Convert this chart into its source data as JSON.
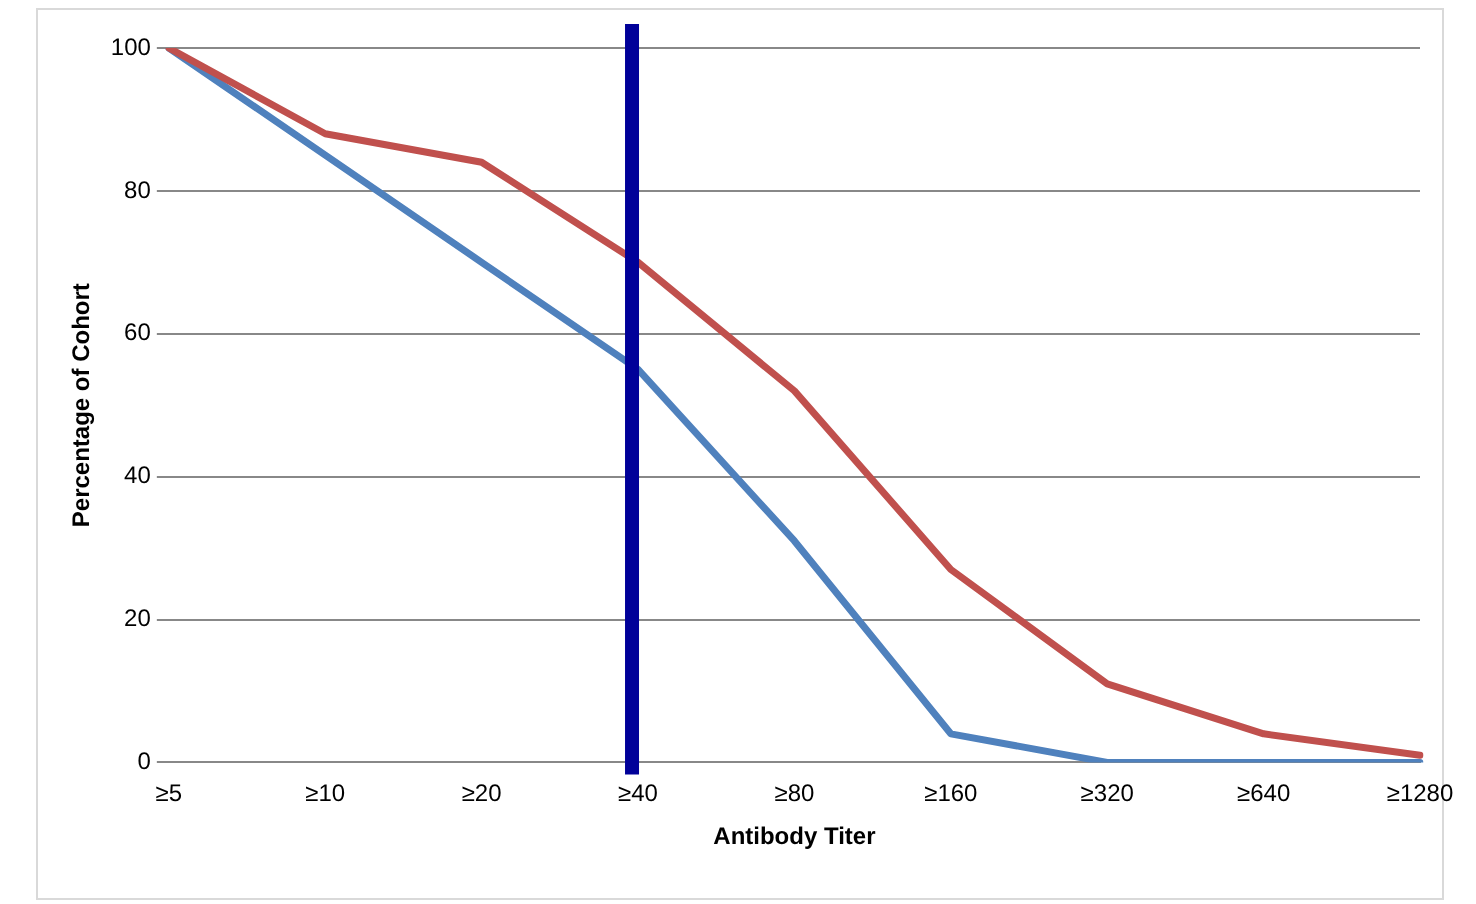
{
  "chart_data": {
    "type": "line",
    "xlabel": "Antibody Titer",
    "ylabel": "Percentage of Cohort",
    "categories": [
      "≥5",
      "≥10",
      "≥20",
      "≥40",
      "≥80",
      "≥160",
      "≥320",
      "≥640",
      "≥1280"
    ],
    "series": [
      {
        "color": "#c0504d",
        "values": [
          100,
          88,
          84,
          70,
          52,
          27,
          11,
          4,
          1
        ]
      },
      {
        "color": "#4f81bd",
        "values": [
          100,
          85,
          70,
          55,
          31,
          4,
          0,
          0,
          0
        ]
      }
    ],
    "ylim": [
      0,
      100
    ],
    "yticks": [
      0,
      20,
      40,
      60,
      80,
      100
    ],
    "grid": "y",
    "legend": false,
    "marker": "none",
    "line_style": "solid",
    "ref_lines": [
      {
        "axis": "x",
        "value": "≥40",
        "color": "#000099"
      }
    ]
  }
}
